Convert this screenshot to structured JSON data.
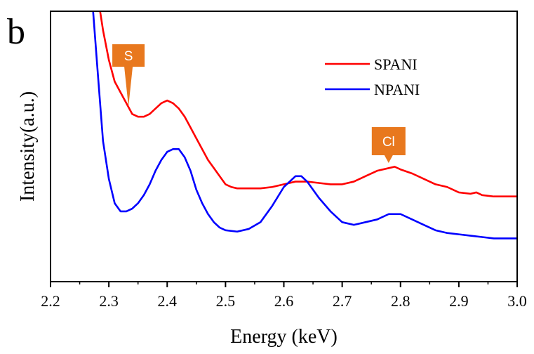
{
  "panel_label": "b",
  "chart_data": {
    "type": "line",
    "xlabel": "Energy (keV)",
    "ylabel": "Intensity(a.u.)",
    "xlim": [
      2.2,
      3.0
    ],
    "ylim": [
      0,
      100
    ],
    "xticks": [
      "2.2",
      "2.3",
      "2.4",
      "2.5",
      "2.6",
      "2.7",
      "2.8",
      "2.9",
      "3.0"
    ],
    "legend_position": "top-right",
    "series": [
      {
        "name": "SPANI",
        "color": "#ff0000",
        "x": [
          2.285,
          2.29,
          2.3,
          2.31,
          2.32,
          2.33,
          2.34,
          2.35,
          2.36,
          2.37,
          2.38,
          2.39,
          2.4,
          2.41,
          2.42,
          2.43,
          2.44,
          2.45,
          2.46,
          2.47,
          2.48,
          2.49,
          2.5,
          2.51,
          2.52,
          2.54,
          2.56,
          2.58,
          2.6,
          2.62,
          2.64,
          2.66,
          2.68,
          2.7,
          2.72,
          2.74,
          2.76,
          2.78,
          2.79,
          2.8,
          2.82,
          2.84,
          2.86,
          2.88,
          2.9,
          2.92,
          2.93,
          2.94,
          2.96,
          2.98,
          3.0
        ],
        "y": [
          100,
          93,
          82,
          74,
          70,
          66,
          62,
          61,
          61,
          62,
          64,
          66,
          67,
          66,
          64,
          61,
          57,
          53,
          49,
          45,
          42,
          39,
          36,
          35,
          34.5,
          34.5,
          34.5,
          35,
          36,
          37,
          37,
          36.5,
          36,
          36,
          37,
          39,
          41,
          42,
          42.5,
          41.5,
          40,
          38,
          36,
          35,
          33,
          32.5,
          33,
          32,
          31.5,
          31.5,
          31.5
        ]
      },
      {
        "name": "NPANI",
        "color": "#0000ff",
        "x": [
          2.273,
          2.28,
          2.29,
          2.3,
          2.31,
          2.32,
          2.33,
          2.34,
          2.35,
          2.36,
          2.37,
          2.38,
          2.39,
          2.4,
          2.41,
          2.42,
          2.43,
          2.44,
          2.45,
          2.46,
          2.47,
          2.48,
          2.49,
          2.5,
          2.52,
          2.54,
          2.56,
          2.58,
          2.6,
          2.62,
          2.63,
          2.64,
          2.66,
          2.68,
          2.7,
          2.72,
          2.74,
          2.76,
          2.78,
          2.8,
          2.82,
          2.84,
          2.86,
          2.88,
          2.9,
          2.92,
          2.94,
          2.96,
          2.98,
          3.0
        ],
        "y": [
          100,
          80,
          52,
          38,
          29,
          26,
          26,
          27,
          29,
          32,
          36,
          41,
          45,
          48,
          49,
          49,
          46,
          41,
          34,
          29,
          25,
          22,
          20,
          19,
          18.5,
          19.5,
          22,
          28,
          35,
          39,
          39,
          37,
          31,
          26,
          22,
          21,
          22,
          23,
          25,
          25,
          23,
          21,
          19,
          18,
          17.5,
          17,
          16.5,
          16,
          16,
          16
        ]
      }
    ],
    "annotations": [
      {
        "label": "S",
        "x": 2.33,
        "shape": "pointer-down",
        "color": "#e8781e"
      },
      {
        "label": "Cl",
        "x": 2.77,
        "shape": "pointer-down",
        "color": "#e8781e"
      }
    ]
  }
}
